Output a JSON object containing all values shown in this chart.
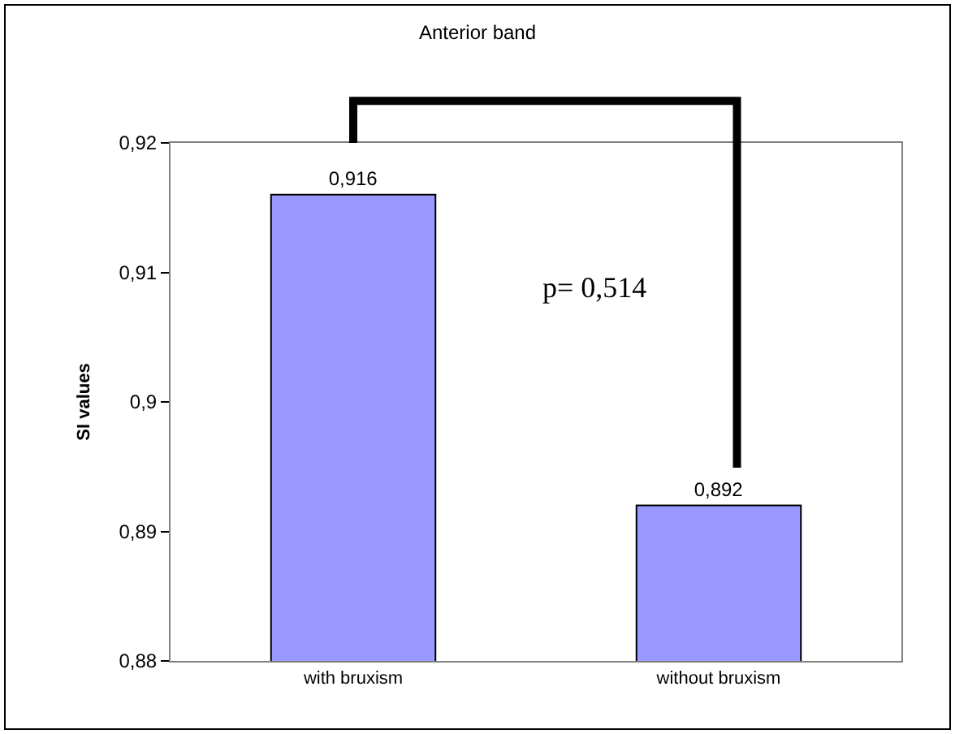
{
  "chart_data": {
    "type": "bar",
    "title": "Anterior band",
    "ylabel": "SI values",
    "categories": [
      "with bruxism",
      "without bruxism"
    ],
    "values": [
      0.916,
      0.892
    ],
    "value_labels": [
      "0,916",
      "0,892"
    ],
    "color": "#9999ff",
    "ylim": [
      0.88,
      0.92
    ],
    "yticks": [
      {
        "value": 0.88,
        "label": "0,88"
      },
      {
        "value": 0.89,
        "label": "0,89"
      },
      {
        "value": 0.9,
        "label": "0,9"
      },
      {
        "value": 0.91,
        "label": "0,91"
      },
      {
        "value": 0.92,
        "label": "0,92"
      }
    ],
    "annotations": [
      "p= 0,514"
    ]
  }
}
